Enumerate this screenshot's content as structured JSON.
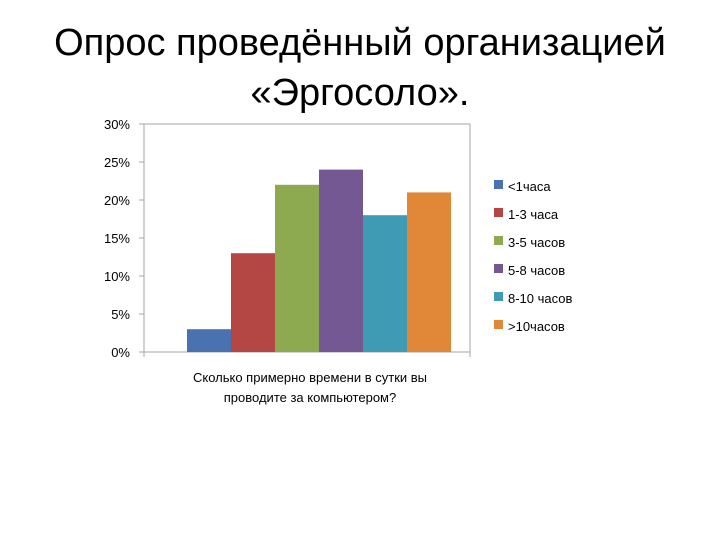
{
  "slide": {
    "title_line1": "Опрос проведённый организацией",
    "title_line2": "«Эргосоло»."
  },
  "chart_data": {
    "type": "bar",
    "title": "",
    "xlabel": "Сколько примерно времени в сутки вы проводите за компьютером?",
    "xlabel_lines": [
      "Сколько примерно времени в сутки вы",
      "проводите за компьютером?"
    ],
    "ylabel": "",
    "ylim": [
      0,
      30
    ],
    "yticks": [
      0,
      5,
      10,
      15,
      20,
      25,
      30
    ],
    "ytick_labels": [
      "0%",
      "5%",
      "10%",
      "15%",
      "20%",
      "25%",
      "30%"
    ],
    "grid": false,
    "legend_position": "right",
    "categories": [
      "Сколько примерно времени в сутки вы проводите за компьютером?"
    ],
    "series": [
      {
        "name": "<1часа",
        "values": [
          3
        ],
        "color": "#4A72B0"
      },
      {
        "name": "1-3 часа",
        "values": [
          13
        ],
        "color": "#B44744"
      },
      {
        "name": "3-5 часов",
        "values": [
          22
        ],
        "color": "#8EAA51"
      },
      {
        "name": "5-8 часов",
        "values": [
          24
        ],
        "color": "#735893"
      },
      {
        "name": "8-10 часов",
        "values": [
          18
        ],
        "color": "#3F9BB4"
      },
      {
        "name": ">10часов",
        "values": [
          21
        ],
        "color": "#E08738"
      }
    ]
  }
}
